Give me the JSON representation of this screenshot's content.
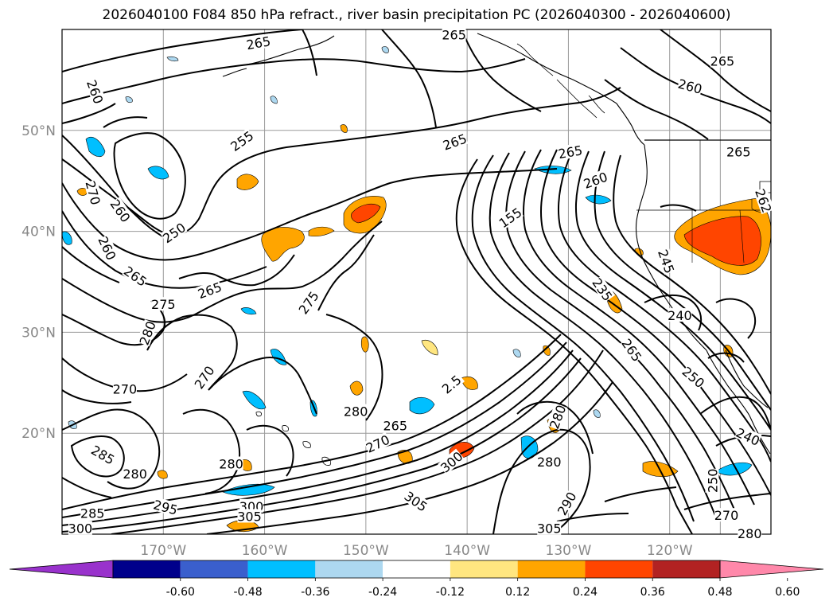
{
  "title": "2026040100 F084 850 hPa refract., river basin precipitation PC (2026040300 - 2026040600)",
  "map": {
    "lon_range": [
      -180,
      -110
    ],
    "lat_range": [
      10,
      60
    ],
    "lat_labels": [
      {
        "lat": 50,
        "text": "50°N"
      },
      {
        "lat": 40,
        "text": "40°N"
      },
      {
        "lat": 30,
        "text": "30°N"
      },
      {
        "lat": 20,
        "text": "20°N"
      }
    ],
    "lon_labels": [
      {
        "lon": -170,
        "text": "170°W"
      },
      {
        "lon": -160,
        "text": "160°W"
      },
      {
        "lon": -150,
        "text": "150°W"
      },
      {
        "lon": -140,
        "text": "140°W"
      },
      {
        "lon": -130,
        "text": "130°W"
      },
      {
        "lon": -120,
        "text": "120°W"
      }
    ],
    "contour_labels": [
      {
        "text": "265",
        "lon": -160.6,
        "lat": 58.6,
        "rot": -10
      },
      {
        "text": "265",
        "lon": -141.3,
        "lat": 59.4,
        "rot": 0
      },
      {
        "text": "265",
        "lon": -114.8,
        "lat": 56.8,
        "rot": 0
      },
      {
        "text": "260",
        "lon": -118.0,
        "lat": 54.3,
        "rot": 15
      },
      {
        "text": "260",
        "lon": -176.8,
        "lat": 53.8,
        "rot": 70
      },
      {
        "text": "255",
        "lon": -162.2,
        "lat": 48.9,
        "rot": -35
      },
      {
        "text": "265",
        "lon": -141.2,
        "lat": 48.8,
        "rot": -20
      },
      {
        "text": "265",
        "lon": -129.8,
        "lat": 47.8,
        "rot": -10
      },
      {
        "text": "265",
        "lon": -113.2,
        "lat": 47.8,
        "rot": 0
      },
      {
        "text": "270",
        "lon": -177.0,
        "lat": 43.8,
        "rot": 75
      },
      {
        "text": "260",
        "lon": -174.3,
        "lat": 42.0,
        "rot": 55
      },
      {
        "text": "260",
        "lon": -127.3,
        "lat": 45.0,
        "rot": -20
      },
      {
        "text": "262",
        "lon": -110.8,
        "lat": 43.0,
        "rot": 70
      },
      {
        "text": "250",
        "lon": -168.9,
        "lat": 39.8,
        "rot": -35
      },
      {
        "text": "155",
        "lon": -135.7,
        "lat": 41.3,
        "rot": -35
      },
      {
        "text": "260",
        "lon": -175.6,
        "lat": 38.3,
        "rot": 65
      },
      {
        "text": "265",
        "lon": -172.8,
        "lat": 35.5,
        "rot": 35
      },
      {
        "text": "265",
        "lon": -165.4,
        "lat": 34.1,
        "rot": -20
      },
      {
        "text": "275",
        "lon": -170.0,
        "lat": 32.7,
        "rot": 0
      },
      {
        "text": "275",
        "lon": -155.6,
        "lat": 32.9,
        "rot": -55
      },
      {
        "text": "235",
        "lon": -126.7,
        "lat": 34.2,
        "rot": 55
      },
      {
        "text": "245",
        "lon": -120.4,
        "lat": 37.0,
        "rot": 70
      },
      {
        "text": "240",
        "lon": -119.0,
        "lat": 31.6,
        "rot": 0
      },
      {
        "text": "280",
        "lon": -171.5,
        "lat": 29.9,
        "rot": -70
      },
      {
        "text": "265",
        "lon": -123.8,
        "lat": 28.2,
        "rot": 55
      },
      {
        "text": "270",
        "lon": -165.9,
        "lat": 25.5,
        "rot": -55
      },
      {
        "text": "250",
        "lon": -117.7,
        "lat": 25.5,
        "rot": 40
      },
      {
        "text": "270",
        "lon": -173.8,
        "lat": 24.3,
        "rot": 0
      },
      {
        "text": "2.5",
        "lon": -141.5,
        "lat": 24.8,
        "rot": -40
      },
      {
        "text": "280",
        "lon": -151.0,
        "lat": 22.1,
        "rot": 0
      },
      {
        "text": "265",
        "lon": -147.1,
        "lat": 20.7,
        "rot": 0
      },
      {
        "text": "280",
        "lon": -131.0,
        "lat": 21.6,
        "rot": -70
      },
      {
        "text": "240",
        "lon": -112.3,
        "lat": 19.6,
        "rot": 25
      },
      {
        "text": "270",
        "lon": -148.8,
        "lat": 18.9,
        "rot": -25
      },
      {
        "text": "285",
        "lon": -176.0,
        "lat": 17.8,
        "rot": 30
      },
      {
        "text": "300",
        "lon": -141.5,
        "lat": 17.1,
        "rot": -40
      },
      {
        "text": "280",
        "lon": -172.8,
        "lat": 15.9,
        "rot": 0
      },
      {
        "text": "280",
        "lon": -163.3,
        "lat": 16.9,
        "rot": 0
      },
      {
        "text": "280",
        "lon": -131.9,
        "lat": 17.1,
        "rot": 0
      },
      {
        "text": "250",
        "lon": -115.7,
        "lat": 15.3,
        "rot": -90
      },
      {
        "text": "305",
        "lon": -145.1,
        "lat": 13.2,
        "rot": 35
      },
      {
        "text": "295",
        "lon": -169.8,
        "lat": 12.6,
        "rot": 15
      },
      {
        "text": "300",
        "lon": -161.3,
        "lat": 12.7,
        "rot": 0
      },
      {
        "text": "305",
        "lon": -161.5,
        "lat": 11.7,
        "rot": 0
      },
      {
        "text": "290",
        "lon": -130.1,
        "lat": 13.0,
        "rot": -60
      },
      {
        "text": "285",
        "lon": -177.0,
        "lat": 12.0,
        "rot": 0
      },
      {
        "text": "270",
        "lon": -114.4,
        "lat": 11.8,
        "rot": 0
      },
      {
        "text": "280",
        "lon": -112.1,
        "lat": 10.0,
        "rot": 0
      },
      {
        "text": "300",
        "lon": -178.2,
        "lat": 10.5,
        "rot": 0
      },
      {
        "text": "305",
        "lon": -131.9,
        "lat": 10.5,
        "rot": 0
      }
    ]
  },
  "colorbar": {
    "ticks": [
      "-0.60",
      "-0.48",
      "-0.36",
      "-0.24",
      "-0.12",
      "0.12",
      "0.24",
      "0.36",
      "0.48",
      "0.60"
    ],
    "colors": [
      "#9932cc",
      "#00008b",
      "#3a5fcd",
      "#00bfff",
      "#add8f0",
      "#ffffff",
      "#ffe680",
      "#ffa500",
      "#ff4500",
      "#b22222",
      "#ff88aa"
    ]
  }
}
